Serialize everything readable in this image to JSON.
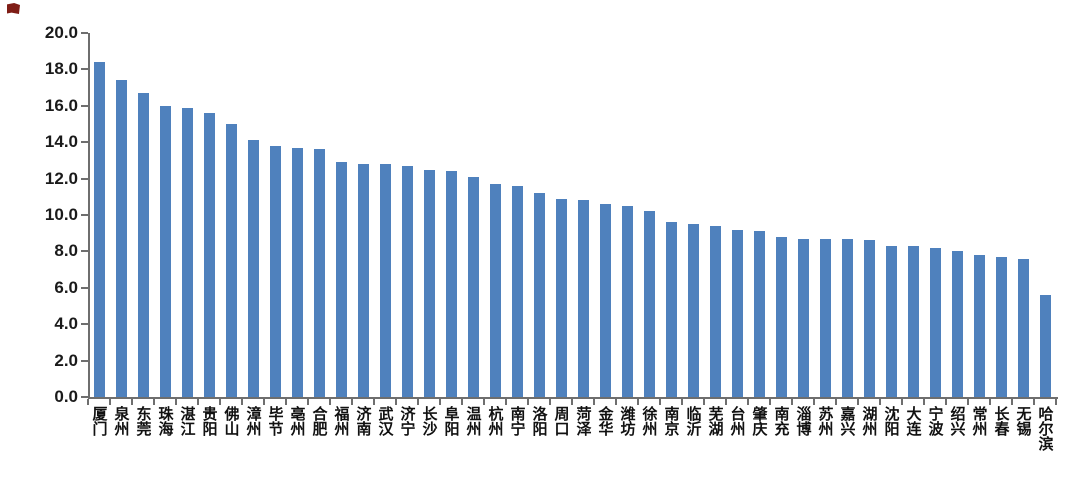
{
  "chart_data": {
    "type": "bar",
    "title": "",
    "xlabel": "",
    "ylabel": "",
    "categories": [
      "厦门",
      "泉州",
      "东莞",
      "珠海",
      "湛江",
      "贵阳",
      "佛山",
      "漳州",
      "毕节",
      "亳州",
      "合肥",
      "福州",
      "济南",
      "武汉",
      "济宁",
      "长沙",
      "阜阳",
      "温州",
      "杭州",
      "南宁",
      "洛阳",
      "周口",
      "菏泽",
      "金华",
      "潍坊",
      "徐州",
      "南京",
      "临沂",
      "芜湖",
      "台州",
      "肇庆",
      "南充",
      "淄博",
      "苏州",
      "嘉兴",
      "湖州",
      "沈阳",
      "大连",
      "宁波",
      "绍兴",
      "常州",
      "长春",
      "无锡",
      "哈尔滨"
    ],
    "values": [
      18.4,
      17.4,
      16.7,
      16.0,
      15.9,
      15.6,
      15.0,
      14.1,
      13.8,
      13.7,
      13.6,
      12.9,
      12.8,
      12.8,
      12.7,
      12.5,
      12.4,
      12.1,
      11.7,
      11.6,
      11.2,
      10.9,
      10.8,
      10.6,
      10.5,
      10.2,
      9.6,
      9.5,
      9.4,
      9.2,
      9.1,
      8.8,
      8.7,
      8.7,
      8.7,
      8.6,
      8.3,
      8.3,
      8.2,
      8.0,
      7.8,
      7.7,
      7.6,
      5.6
    ],
    "ylim": [
      0,
      20
    ],
    "y_tick_labels": [
      "0.0",
      "2.0",
      "4.0",
      "6.0",
      "8.0",
      "10.0",
      "12.0",
      "14.0",
      "16.0",
      "18.0",
      "20.0"
    ],
    "grid": false,
    "legend_position": "none",
    "bar_color": "#4f81bd",
    "axis_color": "#6e6e6e",
    "tick_label_color": "#1a1a1a"
  }
}
